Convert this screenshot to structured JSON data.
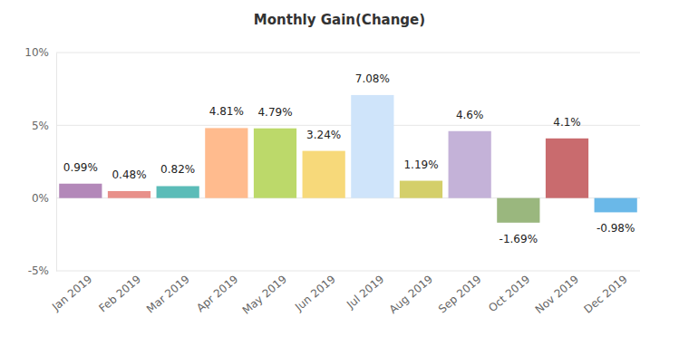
{
  "chart_data": {
    "type": "bar",
    "title": "Monthly Gain(Change)",
    "categories": [
      "Jan 2019",
      "Feb 2019",
      "Mar 2019",
      "Apr 2019",
      "May 2019",
      "Jun 2019",
      "Jul 2019",
      "Aug 2019",
      "Sep 2019",
      "Oct 2019",
      "Nov 2019",
      "Dec 2019"
    ],
    "values": [
      0.99,
      0.48,
      0.82,
      4.81,
      4.79,
      3.24,
      7.08,
      1.19,
      4.6,
      -1.69,
      4.1,
      -0.98
    ],
    "value_labels": [
      "0.99%",
      "0.48%",
      "0.82%",
      "4.81%",
      "4.79%",
      "3.24%",
      "7.08%",
      "1.19%",
      "4.6%",
      "-1.69%",
      "4.1%",
      "-0.98%"
    ],
    "colors": [
      "#b388b9",
      "#e8908a",
      "#5bbcb8",
      "#ffbb8e",
      "#bcd96a",
      "#f7d97a",
      "#cfe4fa",
      "#d4cf6a",
      "#c4b2d8",
      "#9ab77e",
      "#c96b6e",
      "#6ab8e8"
    ],
    "ylim": [
      -5,
      10
    ],
    "yticks": [
      {
        "value": -5,
        "label": "-5%"
      },
      {
        "value": 0,
        "label": "0%"
      },
      {
        "value": 5,
        "label": "5%"
      },
      {
        "value": 10,
        "label": "10%"
      }
    ],
    "grid": true,
    "data_labels": true
  }
}
